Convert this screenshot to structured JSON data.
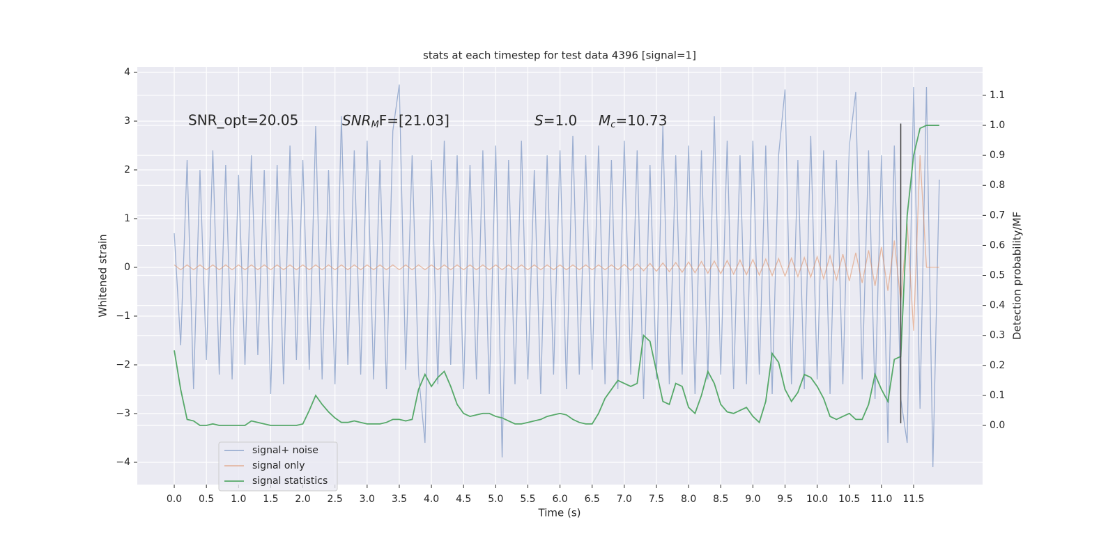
{
  "chart_data": {
    "type": "line",
    "title": "stats at each timestep for test data 4396 [signal=1]",
    "xlabel": "Time (s)",
    "ylabel": "Whitened strain",
    "y2label": "Detection probability/MF",
    "x": [
      0.0,
      0.1,
      0.2,
      0.3,
      0.4,
      0.5,
      0.6,
      0.7,
      0.8,
      0.9,
      1.0,
      1.1,
      1.2,
      1.3,
      1.4,
      1.5,
      1.6,
      1.7,
      1.8,
      1.9,
      2.0,
      2.1,
      2.2,
      2.3,
      2.4,
      2.5,
      2.6,
      2.7,
      2.8,
      2.9,
      3.0,
      3.1,
      3.2,
      3.3,
      3.4,
      3.5,
      3.6,
      3.7,
      3.8,
      3.9,
      4.0,
      4.1,
      4.2,
      4.3,
      4.4,
      4.5,
      4.6,
      4.7,
      4.8,
      4.9,
      5.0,
      5.1,
      5.2,
      5.3,
      5.4,
      5.5,
      5.6,
      5.7,
      5.8,
      5.9,
      6.0,
      6.1,
      6.2,
      6.3,
      6.4,
      6.5,
      6.6,
      6.7,
      6.8,
      6.9,
      7.0,
      7.1,
      7.2,
      7.3,
      7.4,
      7.5,
      7.6,
      7.7,
      7.8,
      7.9,
      8.0,
      8.1,
      8.2,
      8.3,
      8.4,
      8.5,
      8.6,
      8.7,
      8.8,
      8.9,
      9.0,
      9.1,
      9.2,
      9.3,
      9.4,
      9.5,
      9.6,
      9.7,
      9.8,
      9.9,
      10.0,
      10.1,
      10.2,
      10.3,
      10.4,
      10.5,
      10.6,
      10.7,
      10.8,
      10.9,
      11.0,
      11.1,
      11.2,
      11.3,
      11.4,
      11.5,
      11.6,
      11.7,
      11.8,
      11.9
    ],
    "series": [
      {
        "name": "signal+ noise",
        "color": "#4c72b0",
        "alpha": 0.5,
        "axis": "y",
        "values": [
          0.7,
          -1.6,
          2.2,
          -2.5,
          2.0,
          -1.9,
          2.4,
          -2.2,
          2.1,
          -2.3,
          1.9,
          -2.0,
          2.3,
          -1.8,
          2.0,
          -2.6,
          2.1,
          -2.4,
          2.5,
          -1.9,
          2.2,
          -2.1,
          2.9,
          -2.3,
          2.0,
          -2.4,
          3.1,
          -2.0,
          2.4,
          -2.2,
          2.6,
          -2.3,
          2.2,
          -2.5,
          2.8,
          3.75,
          -2.1,
          2.3,
          -2.2,
          -3.6,
          2.2,
          -2.4,
          2.6,
          -2.0,
          2.3,
          -2.5,
          2.1,
          -2.3,
          2.4,
          -2.6,
          2.5,
          -3.9,
          2.2,
          -2.4,
          2.6,
          -2.3,
          2.0,
          -2.6,
          2.3,
          -2.2,
          2.4,
          -2.5,
          2.7,
          -2.2,
          2.3,
          -2.1,
          2.5,
          -2.4,
          2.2,
          -2.5,
          2.6,
          -2.2,
          2.4,
          -2.7,
          2.1,
          -2.3,
          2.9,
          -2.4,
          2.3,
          -2.2,
          2.5,
          -2.6,
          2.4,
          -2.3,
          3.1,
          -2.2,
          2.6,
          -2.5,
          2.3,
          -2.4,
          2.6,
          -2.2,
          2.5,
          -2.6,
          2.3,
          3.65,
          -2.4,
          2.2,
          -2.5,
          2.7,
          -2.3,
          2.4,
          -2.6,
          2.2,
          -2.4,
          2.5,
          3.6,
          -2.3,
          2.4,
          -2.7,
          2.3,
          -3.6,
          2.5,
          -2.7,
          -3.6,
          3.7,
          -2.9,
          3.7,
          -4.1,
          1.8
        ]
      },
      {
        "name": "signal only",
        "color": "#dd8452",
        "alpha": 0.5,
        "axis": "y",
        "values": [
          0.05,
          -0.05,
          0.05,
          -0.05,
          0.05,
          -0.05,
          0.05,
          -0.05,
          0.05,
          -0.05,
          0.05,
          -0.05,
          0.05,
          -0.05,
          0.05,
          -0.05,
          0.05,
          -0.05,
          0.05,
          -0.05,
          0.05,
          -0.05,
          0.05,
          -0.05,
          0.05,
          -0.05,
          0.05,
          -0.05,
          0.05,
          -0.05,
          0.05,
          -0.05,
          0.05,
          -0.05,
          0.05,
          -0.05,
          0.05,
          -0.05,
          0.05,
          -0.05,
          0.05,
          -0.05,
          0.05,
          -0.05,
          0.05,
          -0.05,
          0.05,
          -0.05,
          0.05,
          -0.05,
          0.05,
          -0.05,
          0.05,
          -0.05,
          0.05,
          -0.05,
          0.05,
          -0.05,
          0.05,
          -0.05,
          0.05,
          -0.05,
          0.05,
          -0.05,
          0.05,
          -0.05,
          0.05,
          -0.05,
          0.05,
          -0.05,
          0.06,
          -0.06,
          0.07,
          -0.07,
          0.08,
          -0.08,
          0.09,
          -0.09,
          0.1,
          -0.1,
          0.11,
          -0.11,
          0.12,
          -0.12,
          0.13,
          -0.13,
          0.14,
          -0.14,
          0.15,
          -0.15,
          0.16,
          -0.16,
          0.17,
          -0.17,
          0.18,
          -0.18,
          0.19,
          -0.19,
          0.2,
          -0.2,
          0.22,
          -0.23,
          0.24,
          -0.25,
          0.27,
          -0.28,
          0.3,
          -0.32,
          0.35,
          -0.38,
          0.42,
          -0.48,
          0.55,
          -0.7,
          0.9,
          -1.3,
          2.3,
          0,
          0,
          0
        ]
      },
      {
        "name": "signal statistics",
        "color": "#55a868",
        "alpha": 1,
        "axis": "y2",
        "values": [
          0.25,
          0.12,
          0.02,
          0.015,
          0.0,
          0.0,
          0.005,
          0.0,
          0.0,
          0.0,
          0.0,
          0.0,
          0.015,
          0.01,
          0.005,
          0.0,
          0.0,
          0.0,
          0.0,
          0.0,
          0.005,
          0.05,
          0.1,
          0.07,
          0.045,
          0.025,
          0.01,
          0.01,
          0.015,
          0.01,
          0.005,
          0.005,
          0.005,
          0.01,
          0.02,
          0.02,
          0.015,
          0.02,
          0.12,
          0.17,
          0.13,
          0.16,
          0.18,
          0.13,
          0.07,
          0.04,
          0.03,
          0.035,
          0.04,
          0.04,
          0.03,
          0.025,
          0.015,
          0.005,
          0.005,
          0.01,
          0.015,
          0.02,
          0.03,
          0.035,
          0.04,
          0.035,
          0.02,
          0.01,
          0.005,
          0.005,
          0.04,
          0.09,
          0.12,
          0.15,
          0.14,
          0.13,
          0.14,
          0.3,
          0.28,
          0.18,
          0.08,
          0.07,
          0.14,
          0.13,
          0.06,
          0.04,
          0.1,
          0.18,
          0.14,
          0.07,
          0.045,
          0.04,
          0.05,
          0.06,
          0.03,
          0.01,
          0.08,
          0.24,
          0.21,
          0.12,
          0.08,
          0.11,
          0.17,
          0.16,
          0.13,
          0.09,
          0.03,
          0.02,
          0.03,
          0.04,
          0.02,
          0.02,
          0.07,
          0.17,
          0.12,
          0.08,
          0.22,
          0.23,
          0.7,
          0.9,
          0.99,
          1.0,
          1.0,
          1.0
        ]
      }
    ],
    "markers": [
      {
        "x": 11.3,
        "ymin": -3.2,
        "ymax": 2.95,
        "color": "#444444"
      }
    ],
    "annotations": [
      {
        "text": "SNR_opt=20.05"
      },
      {
        "base": "SNR",
        "sub": "M",
        "tail": "F=[21.03]"
      },
      {
        "base": "S",
        "tail": "=1.0"
      },
      {
        "base": "M",
        "sub": "c",
        "tail": "=10.73"
      }
    ],
    "xlim": [
      -0.575,
      12.573
    ],
    "ylim": [
      -4.457,
      4.114
    ],
    "y2lim": [
      -0.1972,
      1.195
    ],
    "xticks": [
      {
        "value": 0,
        "label": "0.0"
      },
      0.5,
      {
        "value": 1,
        "label": "1.0"
      },
      1.5,
      {
        "value": 2,
        "label": "2.0"
      },
      2.5,
      {
        "value": 3,
        "label": "3.0"
      },
      3.5,
      {
        "value": 4,
        "label": "4.0"
      },
      4.5,
      {
        "value": 5,
        "label": "5.0"
      },
      5.5,
      {
        "value": 6,
        "label": "6.0"
      },
      6.5,
      {
        "value": 7,
        "label": "7.0"
      },
      7.5,
      {
        "value": 8,
        "label": "8.0"
      },
      8.5,
      {
        "value": 9,
        "label": "9.0"
      },
      9.5,
      {
        "value": 10,
        "label": "10.0"
      },
      10.5,
      {
        "value": 11,
        "label": "11.0"
      },
      11.5
    ],
    "yticks": [
      {
        "value": -4,
        "label": "−4"
      },
      {
        "value": -3,
        "label": "−3"
      },
      {
        "value": -2,
        "label": "−2"
      },
      {
        "value": -1,
        "label": "−1"
      },
      0,
      1,
      2,
      3,
      4
    ],
    "y2ticks": [
      {
        "value": 0,
        "label": "0.0"
      },
      0.1,
      0.2,
      0.3,
      0.4,
      0.5,
      0.6,
      0.7,
      0.8,
      0.9,
      {
        "value": 1,
        "label": "1.0"
      },
      1.1
    ],
    "grid": true,
    "legend": "lower left"
  }
}
